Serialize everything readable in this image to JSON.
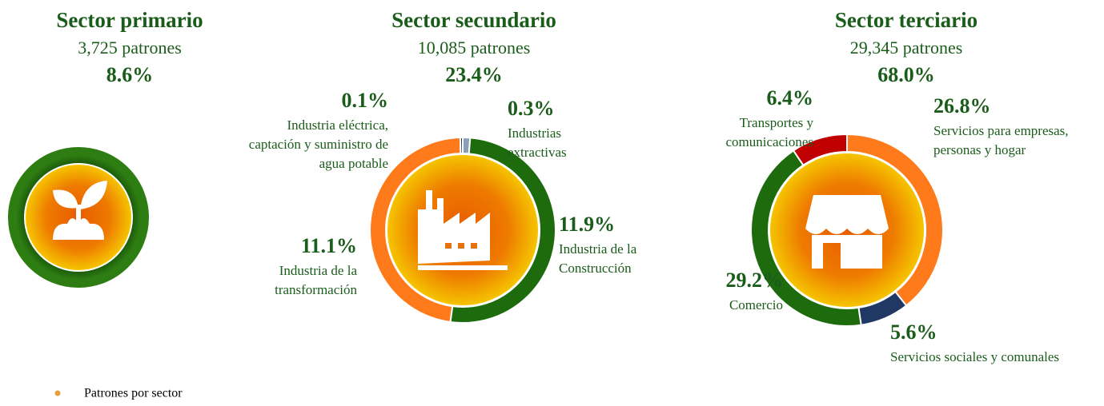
{
  "chart_data": [
    {
      "type": "donut",
      "title": "Sector primario",
      "subtitle": "3,725 patrones",
      "share": 8.6,
      "share_label": "8.6%",
      "color": "#1e6b0e"
    },
    {
      "type": "donut",
      "title": "Sector secundario",
      "subtitle": "10,085 patrones",
      "share": 23.4,
      "share_label": "23.4%",
      "categories": [
        [
          "Industrias",
          "extractivas"
        ],
        [
          "Industria de la",
          "Construcción"
        ],
        [
          "Industria de la",
          "transformación"
        ],
        [
          "Industria eléctrica,",
          "captación y suministro de",
          "agua potable"
        ]
      ],
      "values": [
        0.3,
        11.9,
        11.1,
        0.1
      ],
      "value_labels": [
        "0.3%",
        "11.9%",
        "11.1%",
        "0.1%"
      ],
      "colors": [
        "#8aa0b8",
        "#1e6b0e",
        "#ff7a1a",
        "#1f3864"
      ]
    },
    {
      "type": "donut",
      "title": "Sector terciario",
      "subtitle": "29,345 patrones",
      "share": 68.0,
      "share_label": "68.0%",
      "categories": [
        [
          "Servicios para empresas,",
          "personas y hogar"
        ],
        [
          "Servicios sociales y comunales"
        ],
        [
          "Comercio"
        ],
        [
          "Transportes y",
          "comunicaciones"
        ]
      ],
      "values": [
        26.8,
        5.6,
        29.2,
        6.4
      ],
      "value_labels": [
        "26.8%",
        "5.6%",
        "29.2%",
        "6.4%"
      ],
      "colors": [
        "#ff7a1a",
        "#1f3864",
        "#1e6b0e",
        "#c00000"
      ]
    }
  ],
  "legend": "Patrones por sector"
}
